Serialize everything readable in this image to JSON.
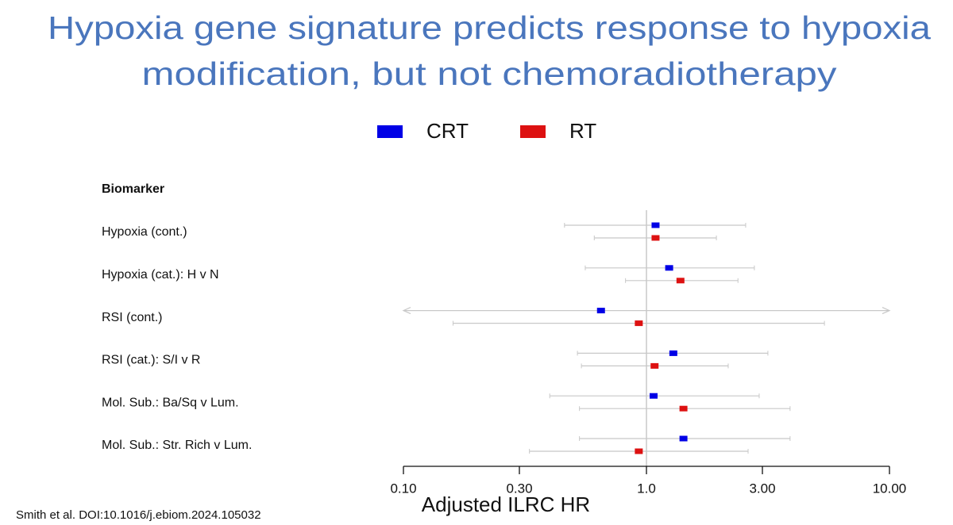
{
  "chart_data": {
    "type": "forest",
    "title": [
      "Hypoxia gene signature predicts response to hypoxia",
      "modification, but not chemoradiotherapy"
    ],
    "column_header": "Biomarker",
    "categories": [
      "Hypoxia (cont.)",
      "Hypoxia (cat.): H v N",
      "RSI (cont.)",
      "RSI (cat.): S/I v R",
      "Mol. Sub.: Ba/Sq v Lum.",
      "Mol. Sub.: Str. Rich v Lum."
    ],
    "series": [
      {
        "name": "CRT",
        "color": "#0000e6",
        "values": [
          1.09,
          1.24,
          0.65,
          1.29,
          1.07,
          1.42
        ],
        "ci_low": [
          0.46,
          0.56,
          0.1,
          0.52,
          0.4,
          0.53
        ],
        "ci_high": [
          2.56,
          2.78,
          10,
          3.16,
          2.91,
          3.9
        ]
      },
      {
        "name": "RT",
        "color": "#dd1111",
        "values": [
          1.09,
          1.38,
          0.93,
          1.08,
          1.42,
          0.93
        ],
        "ci_low": [
          0.61,
          0.82,
          0.16,
          0.54,
          0.53,
          0.33
        ],
        "ci_high": [
          1.94,
          2.38,
          5.4,
          2.17,
          3.9,
          2.62
        ]
      }
    ],
    "xlabel": "Adjusted ILRC HR",
    "xscale": "log",
    "xlim": [
      0.1,
      10
    ],
    "xticks": [
      {
        "value": 0.1,
        "label": "0.10"
      },
      {
        "value": 0.3,
        "label": "0.30"
      },
      {
        "value": 1,
        "label": "1.0"
      },
      {
        "value": 3,
        "label": "3.00"
      },
      {
        "value": 10,
        "label": "10.00"
      }
    ],
    "reference_line": 1,
    "footnote": "Smith et al. DOI:10.1016/j.ebiom.2024.105032"
  }
}
